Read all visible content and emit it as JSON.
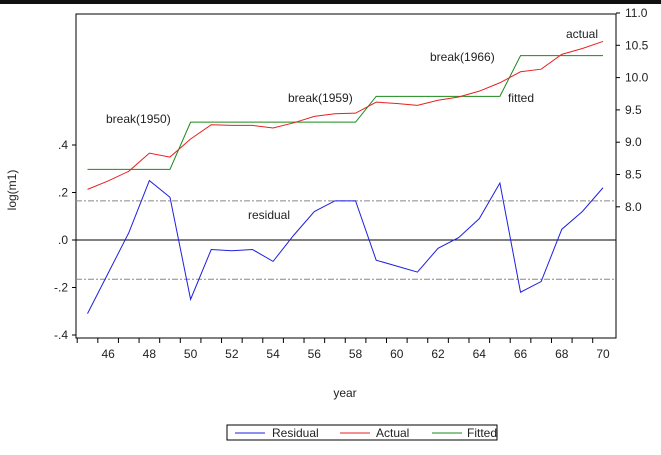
{
  "chart_data": {
    "type": "line",
    "title": "",
    "xlabel": "year",
    "ylabel_left": "log(m1)",
    "x": [
      45,
      46,
      47,
      48,
      49,
      50,
      51,
      52,
      53,
      54,
      55,
      56,
      57,
      58,
      59,
      60,
      61,
      62,
      63,
      64,
      65,
      66,
      67,
      68,
      69,
      70
    ],
    "x_ticks": [
      "46",
      "48",
      "50",
      "52",
      "54",
      "56",
      "58",
      "60",
      "62",
      "64",
      "66",
      "68",
      "70"
    ],
    "x_tick_values": [
      46,
      48,
      50,
      52,
      54,
      56,
      58,
      60,
      62,
      64,
      66,
      68,
      70
    ],
    "left_axis": {
      "range": [
        -0.4,
        0.5
      ],
      "ticks": [
        -0.4,
        -0.2,
        0.0,
        0.2,
        0.4
      ],
      "tick_labels": [
        "-.4",
        "-.2",
        ".0",
        ".2",
        ".4"
      ]
    },
    "right_axis": {
      "range": [
        7.6,
        11.0
      ],
      "ticks": [
        8.0,
        8.5,
        9.0,
        9.5,
        10.0,
        10.5,
        11.0
      ],
      "tick_labels": [
        "8.0",
        "8.5",
        "9.0",
        "9.5",
        "10.0",
        "10.5",
        "11.0"
      ]
    },
    "residual_bands": [
      -0.165,
      0.165
    ],
    "series": [
      {
        "name": "Residual",
        "axis": "left",
        "color": "#1f1fe0",
        "values": [
          -0.31,
          -0.14,
          0.03,
          0.25,
          0.18,
          -0.25,
          -0.04,
          -0.045,
          -0.04,
          -0.09,
          0.02,
          0.12,
          0.165,
          0.165,
          -0.085,
          -0.11,
          -0.135,
          -0.035,
          0.01,
          0.09,
          0.24,
          -0.22,
          -0.175,
          0.045,
          0.12,
          0.22
        ]
      },
      {
        "name": "Actual",
        "axis": "right",
        "color": "#e82020",
        "values": [
          8.27,
          8.4,
          8.55,
          8.83,
          8.77,
          9.05,
          9.27,
          9.26,
          9.26,
          9.22,
          9.3,
          9.4,
          9.44,
          9.45,
          9.62,
          9.6,
          9.57,
          9.65,
          9.7,
          9.79,
          9.92,
          10.09,
          10.13,
          10.36,
          10.45,
          10.56
        ]
      },
      {
        "name": "Fitted",
        "axis": "right",
        "color": "#1a8a1a",
        "values": [
          8.58,
          8.58,
          8.58,
          8.58,
          8.58,
          9.31,
          9.31,
          9.31,
          9.31,
          9.31,
          9.31,
          9.31,
          9.31,
          9.31,
          9.71,
          9.71,
          9.71,
          9.71,
          9.71,
          9.71,
          9.71,
          10.34,
          10.34,
          10.34,
          10.34,
          10.34
        ]
      }
    ],
    "annotations": [
      "break(1950)",
      "break(1959)",
      "break(1966)",
      "fitted",
      "actual",
      "residual"
    ],
    "legend_placement": "bottom"
  }
}
